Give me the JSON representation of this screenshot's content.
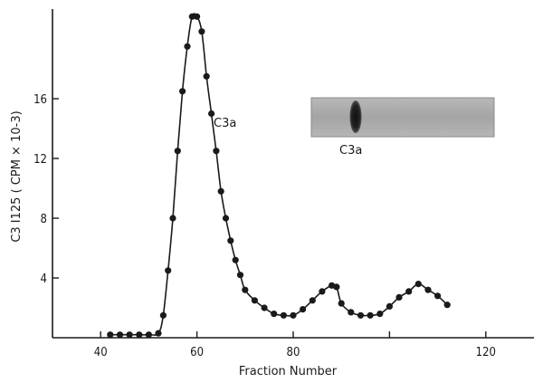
{
  "chart_data": {
    "type": "line",
    "title": "",
    "xlabel": "Fraction Number",
    "ylabel": "C3 I125 ( CPM × 10-3)",
    "xlim": [
      30,
      130
    ],
    "ylim": [
      0,
      22
    ],
    "xticks": [
      40,
      60,
      80,
      100,
      120
    ],
    "xtick_labels": [
      "40",
      "60",
      "80",
      "",
      "120"
    ],
    "yticks": [
      4,
      8,
      12,
      16
    ],
    "grid": false,
    "legend": "none",
    "series": [
      {
        "name": "",
        "x": [
          42,
          44,
          46,
          48,
          50,
          52,
          53,
          54,
          55,
          56,
          57,
          58,
          59,
          60,
          61,
          62,
          63,
          64,
          65,
          66,
          67,
          68,
          69,
          70,
          72,
          74,
          76,
          78,
          80,
          82,
          84,
          86,
          88,
          89,
          90,
          92,
          94,
          96,
          98,
          100,
          102,
          104,
          106,
          108,
          110,
          112
        ],
        "y": [
          0.2,
          0.2,
          0.2,
          0.2,
          0.2,
          0.3,
          1.5,
          4.5,
          8.0,
          12.5,
          16.5,
          19.5,
          21.5,
          21.5,
          20.5,
          17.5,
          15.0,
          12.5,
          9.8,
          8.0,
          6.5,
          5.2,
          4.2,
          3.2,
          2.5,
          2.0,
          1.6,
          1.5,
          1.5,
          1.9,
          2.5,
          3.1,
          3.5,
          3.4,
          2.3,
          1.7,
          1.5,
          1.5,
          1.6,
          2.1,
          2.7,
          3.1,
          3.6,
          3.2,
          2.8,
          2.2
        ]
      }
    ],
    "annotations": [
      {
        "label": "C3a",
        "at": "peak"
      },
      {
        "label": "C3a",
        "at": "gel-inset"
      }
    ]
  }
}
